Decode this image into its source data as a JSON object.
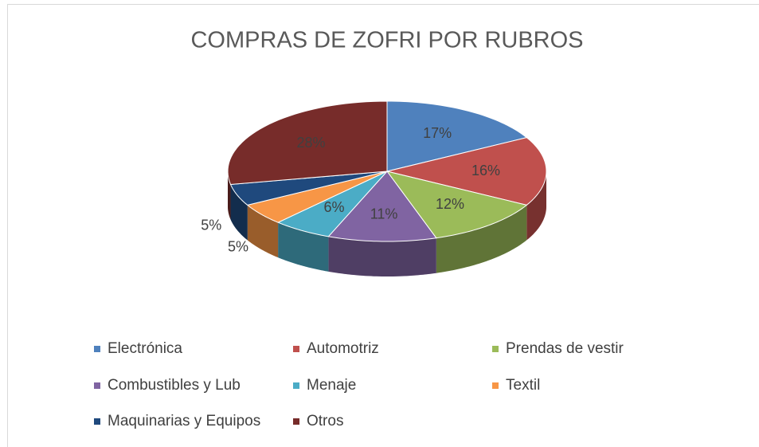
{
  "chart_data": {
    "type": "pie3d",
    "title": "COMPRAS DE ZOFRI POR RUBROS",
    "categories": [
      "Electrónica",
      "Automotriz",
      "Prendas de vestir",
      "Combustibles y Lub",
      "Menaje",
      "Textil",
      "Maquinarias y Equipos",
      "Otros"
    ],
    "values": [
      17,
      16,
      12,
      11,
      6,
      5,
      5,
      28
    ],
    "value_labels": [
      "17%",
      "16%",
      "12%",
      "11%",
      "6%",
      "5%",
      "5%",
      "28%"
    ],
    "colors": [
      "#4f81bd",
      "#c0504d",
      "#9bbb59",
      "#8064a2",
      "#4bacc6",
      "#f79646",
      "#1f497d",
      "#772c2a"
    ],
    "legend": "bottom"
  }
}
